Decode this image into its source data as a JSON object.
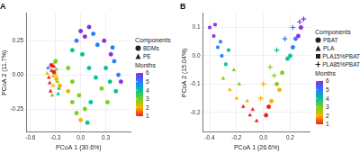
{
  "chart_data": [
    {
      "type": "scatter",
      "title": "A",
      "x_label": "PCoA 1 (30.6%)",
      "y_label": "PCoA 2 (11.7%)",
      "xlim": [
        -0.65,
        0.6
      ],
      "xticks": [
        -0.6,
        -0.3,
        {
          "value": 0,
          "label": "0.0"
        },
        0.3
      ],
      "ylim": [
        -0.42,
        0.45
      ],
      "yticks": [
        -0.25,
        {
          "value": 0,
          "label": "0.00"
        },
        0.25
      ],
      "grid": true,
      "legend": "right",
      "legend_title": "Components",
      "series": [
        {
          "name": "BDMs",
          "marker": "circle",
          "x": [
            -0.32,
            -0.29,
            -0.35,
            -0.25,
            -0.3,
            -0.1,
            -0.05,
            0.0,
            0.05,
            -0.15,
            0.08,
            -0.02,
            0.12,
            -0.05,
            0.0,
            0.05,
            0.1,
            -0.1,
            0.15,
            0.2,
            0.02,
            0.3,
            0.35,
            0.4,
            0.42,
            0.45,
            0.38,
            0.32,
            0.48,
            0.25,
            0.36,
            0.28,
            -0.15,
            -0.1,
            0.1,
            0.18
          ],
          "y": [
            0.02,
            -0.03,
            0.07,
            -0.08,
            0.1,
            -0.2,
            -0.28,
            -0.33,
            -0.25,
            -0.12,
            -0.35,
            -0.15,
            -0.2,
            0.25,
            0.32,
            0.28,
            0.35,
            0.18,
            0.3,
            0.22,
            0.15,
            0.05,
            -0.05,
            0.1,
            -0.12,
            0.0,
            0.2,
            -0.2,
            -0.05,
            -0.1,
            0.15,
            0.25,
            0.05,
            -0.05,
            0.05,
            -0.02
          ],
          "month": [
            1,
            2,
            1,
            2,
            3,
            3,
            3,
            2,
            3,
            2,
            4,
            3,
            4,
            5,
            6,
            6,
            6,
            4,
            5,
            5,
            4,
            4,
            4,
            5,
            4,
            5,
            5,
            3,
            6,
            3,
            6,
            6,
            3,
            3,
            4,
            4
          ]
        },
        {
          "name": "PE",
          "marker": "triangle",
          "x": [
            -0.38,
            -0.35,
            -0.33,
            -0.3,
            -0.36,
            -0.28,
            -0.32,
            -0.4,
            -0.26,
            -0.34,
            -0.31,
            -0.37,
            -0.29,
            -0.33,
            -0.27,
            -0.39
          ],
          "y": [
            -0.02,
            0.03,
            -0.08,
            0.0,
            -0.12,
            -0.05,
            0.06,
            0.01,
            -0.1,
            -0.15,
            0.09,
            -0.06,
            0.04,
            -0.01,
            -0.14,
            0.05
          ],
          "month": [
            1,
            1,
            2,
            2,
            1,
            3,
            1,
            2,
            4,
            3,
            2,
            1,
            3,
            2,
            4,
            5
          ]
        }
      ],
      "colorbar": {
        "title": "Months",
        "range": [
          1,
          6
        ],
        "ticks": [
          1,
          2,
          3,
          4,
          5,
          6
        ],
        "colors": [
          "#e8231f",
          "#f5b400",
          "#7ccf1e",
          "#00c39a",
          "#2a7bff",
          "#8a2be2"
        ]
      }
    },
    {
      "type": "scatter",
      "title": "B",
      "x_label": "PCoA 1 (26.6%)",
      "y_label": "PCoA 2 (15.04%)",
      "xlim": [
        -0.45,
        0.35
      ],
      "xticks": [
        -0.4,
        -0.2,
        {
          "value": 0,
          "label": "0.0"
        },
        0.2
      ],
      "ylim": [
        -0.27,
        0.15
      ],
      "yticks": [
        -0.2,
        -0.1,
        {
          "value": 0,
          "label": "0.0"
        },
        0.1
      ],
      "grid": true,
      "legend": "right",
      "legend_title": "Components",
      "series": [
        {
          "name": "PBAT",
          "marker": "circle",
          "x": [
            0.02,
            0.06,
            0.1,
            0.14,
            0.18,
            0.22,
            0.26,
            0.28,
            0.12,
            0.2,
            0.04,
            0.24
          ],
          "y": [
            -0.21,
            -0.16,
            -0.1,
            -0.06,
            -0.01,
            0.03,
            0.07,
            0.1,
            -0.12,
            0.0,
            -0.18,
            0.06
          ],
          "month": [
            1,
            2,
            3,
            3,
            4,
            5,
            6,
            6,
            2,
            4,
            1,
            5
          ]
        },
        {
          "name": "PLA",
          "marker": "triangle",
          "x": [
            -0.3,
            -0.25,
            -0.2,
            -0.15,
            -0.1,
            -0.05,
            -0.18,
            -0.12,
            -0.08,
            -0.22
          ],
          "y": [
            -0.08,
            -0.12,
            -0.15,
            -0.18,
            -0.21,
            -0.23,
            -0.1,
            -0.16,
            -0.19,
            -0.05
          ],
          "month": [
            3,
            2,
            2,
            1,
            1,
            1,
            3,
            2,
            1,
            3
          ]
        },
        {
          "name": "PLA15%PBAT",
          "marker": "square",
          "x": [
            -0.4,
            -0.37,
            -0.34,
            -0.31,
            -0.28,
            -0.36,
            -0.32,
            -0.26
          ],
          "y": [
            0.1,
            0.07,
            0.03,
            0.0,
            -0.03,
            0.11,
            0.05,
            0.02
          ],
          "month": [
            6,
            6,
            5,
            5,
            4,
            6,
            5,
            4
          ]
        },
        {
          "name": "PLA85%PBAT",
          "marker": "cross",
          "x": [
            0.0,
            0.05,
            0.1,
            0.16,
            0.22,
            0.27,
            0.3,
            -0.02,
            0.08
          ],
          "y": [
            -0.1,
            -0.04,
            0.02,
            0.06,
            0.1,
            0.12,
            0.13,
            -0.15,
            -0.07
          ],
          "month": [
            2,
            3,
            4,
            5,
            5,
            6,
            6,
            2,
            3
          ]
        }
      ],
      "colorbar": {
        "title": "Months",
        "range": [
          1,
          6
        ],
        "ticks": [
          1,
          2,
          3,
          4,
          5,
          6
        ],
        "colors": [
          "#e8231f",
          "#f5b400",
          "#7ccf1e",
          "#00c39a",
          "#2a7bff",
          "#8a2be2"
        ]
      }
    }
  ]
}
